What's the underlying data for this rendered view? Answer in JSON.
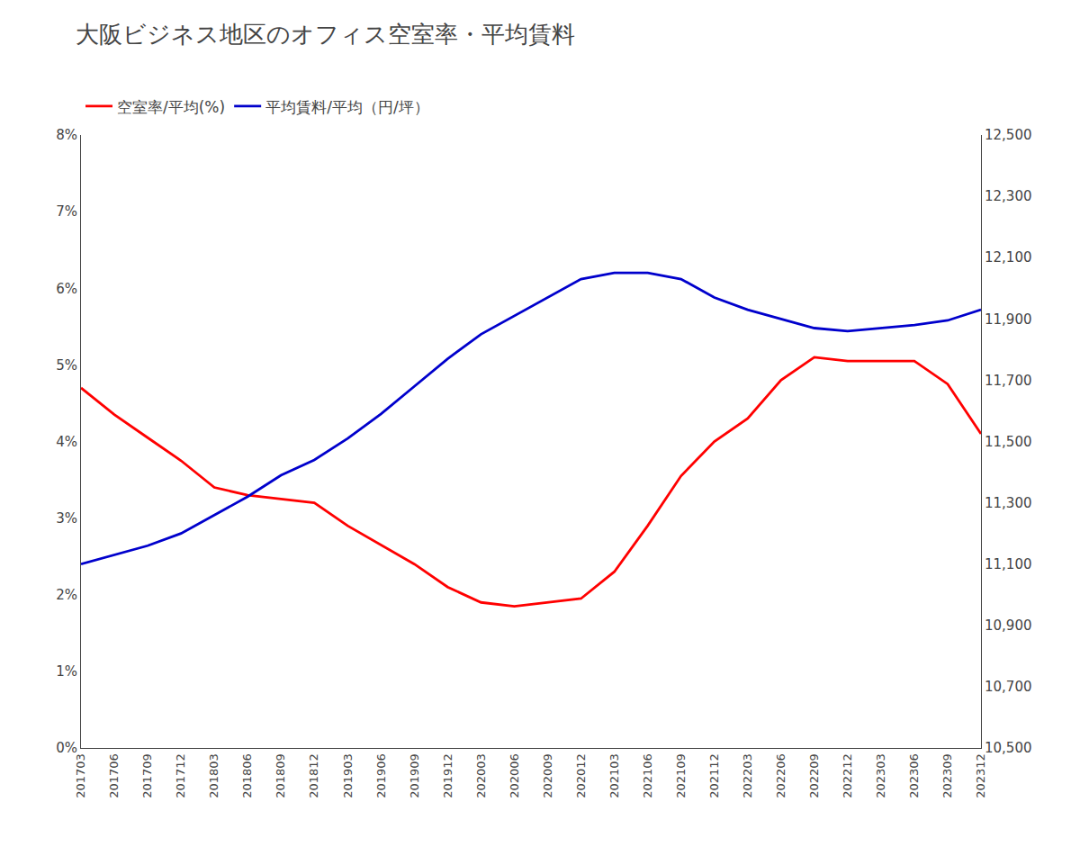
{
  "chart_data": {
    "type": "line",
    "title": "大阪ビジネス地区のオフィス空室率・平均賃料",
    "categories": [
      "201703",
      "201706",
      "201709",
      "201712",
      "201803",
      "201806",
      "201809",
      "201812",
      "201903",
      "201906",
      "201909",
      "201912",
      "202003",
      "202006",
      "202009",
      "202012",
      "202103",
      "202106",
      "202109",
      "202112",
      "202203",
      "202206",
      "202209",
      "202212",
      "202303",
      "202306",
      "202309",
      "202312"
    ],
    "series": [
      {
        "name": "空室率/平均(%)",
        "color": "#ff0000",
        "values": [
          4.7,
          4.35,
          4.05,
          3.75,
          3.4,
          3.3,
          3.25,
          3.2,
          2.9,
          2.65,
          2.4,
          2.1,
          1.9,
          1.85,
          1.9,
          1.95,
          2.3,
          2.9,
          3.55,
          4.0,
          4.3,
          4.8,
          5.1,
          5.05,
          5.05,
          5.05,
          4.75,
          4.1
        ]
      },
      {
        "name": "平均賃料/平均（円/坪）",
        "color": "#0000cc",
        "axis": "y2",
        "values": [
          11100,
          11130,
          11160,
          11200,
          11260,
          11320,
          11390,
          11440,
          11510,
          11590,
          11680,
          11770,
          11850,
          11910,
          11970,
          12030,
          12050,
          12050,
          12030,
          11970,
          11930,
          11900,
          11870,
          11860,
          11870,
          11880,
          11895,
          11930
        ]
      }
    ],
    "ylim": [
      0,
      8
    ],
    "yticks": [
      {
        "value": 0,
        "label": "0%"
      },
      {
        "value": 1,
        "label": "1%"
      },
      {
        "value": 2,
        "label": "2%"
      },
      {
        "value": 3,
        "label": "3%"
      },
      {
        "value": 4,
        "label": "4%"
      },
      {
        "value": 5,
        "label": "5%"
      },
      {
        "value": 6,
        "label": "6%"
      },
      {
        "value": 7,
        "label": "7%"
      },
      {
        "value": 8,
        "label": "8%"
      }
    ],
    "y2lim": [
      10500,
      12500
    ],
    "y2ticks": [
      {
        "value": 10500,
        "label": "10,500"
      },
      {
        "value": 10700,
        "label": "10,700"
      },
      {
        "value": 10900,
        "label": "10,900"
      },
      {
        "value": 11100,
        "label": "11,100"
      },
      {
        "value": 11300,
        "label": "11,300"
      },
      {
        "value": 11500,
        "label": "11,500"
      },
      {
        "value": 11700,
        "label": "11,700"
      },
      {
        "value": 11900,
        "label": "11,900"
      },
      {
        "value": 12100,
        "label": "12,100"
      },
      {
        "value": 12300,
        "label": "12,300"
      },
      {
        "value": 12500,
        "label": "12,500"
      }
    ],
    "grid": false,
    "legend": "upper left"
  }
}
